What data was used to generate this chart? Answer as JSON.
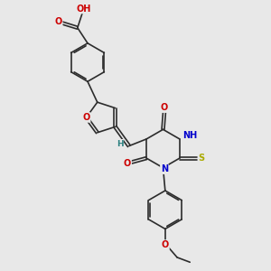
{
  "background_color": "#e8e8e8",
  "bond_color": "#2c2c2c",
  "atom_colors": {
    "O": "#cc0000",
    "N": "#0000cc",
    "S": "#aaaa00",
    "H": "#2c8080",
    "C": "#2c2c2c"
  },
  "figsize": [
    3.0,
    3.0
  ],
  "dpi": 100
}
